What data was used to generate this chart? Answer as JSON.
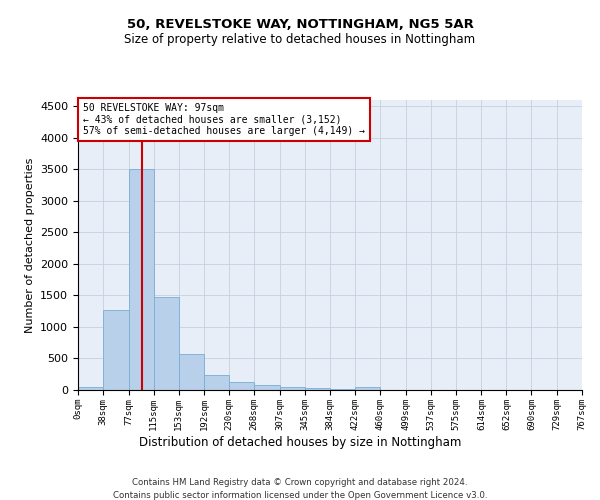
{
  "title1": "50, REVELSTOKE WAY, NOTTINGHAM, NG5 5AR",
  "title2": "Size of property relative to detached houses in Nottingham",
  "xlabel": "Distribution of detached houses by size in Nottingham",
  "ylabel": "Number of detached properties",
  "footer1": "Contains HM Land Registry data © Crown copyright and database right 2024.",
  "footer2": "Contains public sector information licensed under the Open Government Licence v3.0.",
  "annotation_title": "50 REVELSTOKE WAY: 97sqm",
  "annotation_line1": "← 43% of detached houses are smaller (3,152)",
  "annotation_line2": "57% of semi-detached houses are larger (4,149) →",
  "property_size": 97,
  "bar_color": "#b8d0ea",
  "bar_edge_color": "#7aadd4",
  "vline_color": "#cc0000",
  "annotation_box_color": "#cc0000",
  "background_color": "#e8eef8",
  "grid_color": "#c5cfe0",
  "bin_edges": [
    0,
    38,
    77,
    115,
    153,
    192,
    230,
    268,
    307,
    345,
    384,
    422,
    460,
    499,
    537,
    575,
    614,
    652,
    690,
    729,
    767
  ],
  "bar_heights": [
    40,
    1270,
    3500,
    1480,
    575,
    240,
    120,
    85,
    55,
    35,
    20,
    40,
    5,
    0,
    0,
    0,
    0,
    0,
    0,
    0
  ],
  "ylim": [
    0,
    4600
  ],
  "yticks": [
    0,
    500,
    1000,
    1500,
    2000,
    2500,
    3000,
    3500,
    4000,
    4500
  ]
}
